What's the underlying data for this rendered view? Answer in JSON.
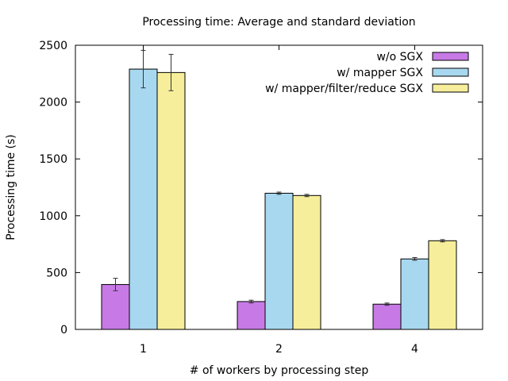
{
  "chart_data": {
    "type": "bar",
    "title": "Processing time: Average and standard deviation",
    "xlabel": "# of workers by processing step",
    "ylabel": "Processing time (s)",
    "categories": [
      "1",
      "2",
      "4"
    ],
    "ylim": [
      0,
      2500
    ],
    "yticks": [
      0,
      500,
      1000,
      1500,
      2000,
      2500
    ],
    "grid": false,
    "legend_position": "top-right",
    "series": [
      {
        "name": "w/o SGX",
        "color": "#c77ae6",
        "values": [
          395,
          245,
          222
        ],
        "errors": [
          55,
          12,
          10
        ]
      },
      {
        "name": "w/ mapper SGX",
        "color": "#a8d8f0",
        "values": [
          2290,
          1198,
          620
        ],
        "errors": [
          165,
          10,
          12
        ]
      },
      {
        "name": "w/ mapper/filter/reduce SGX",
        "color": "#f6ee9a",
        "values": [
          2260,
          1178,
          780
        ],
        "errors": [
          160,
          10,
          10
        ]
      }
    ]
  }
}
